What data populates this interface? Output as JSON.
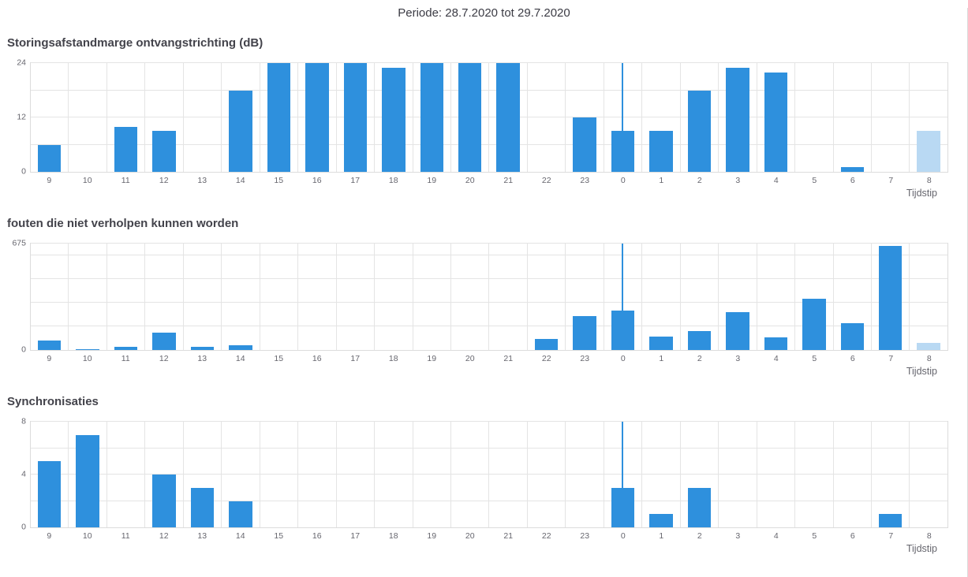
{
  "header": {
    "period_label": "Periode: 28.7.2020 tot 29.7.2020"
  },
  "x_axis_title": "Tijdstip",
  "categories": [
    "9",
    "10",
    "11",
    "12",
    "13",
    "14",
    "15",
    "16",
    "17",
    "18",
    "19",
    "20",
    "21",
    "22",
    "23",
    "0",
    "1",
    "2",
    "3",
    "4",
    "5",
    "6",
    "7",
    "8"
  ],
  "midnight_index": 15,
  "colors": {
    "bar": "#2e90dd",
    "bar_faded": "#b9d9f3",
    "grid": "#e4e4e4",
    "plot_border": "#dcdcdc",
    "title_text": "#43434b",
    "tick_text": "#66666e",
    "header_text": "#3b3b44",
    "midnight_line": "#2e90dd",
    "page_border": "#d9d9d9"
  },
  "chart_data": [
    {
      "type": "bar",
      "title": "Storingsafstandmarge ontvangstrichting (dB)",
      "xlabel": "Tijdstip",
      "ylabel": "",
      "ylim": [
        0,
        24
      ],
      "ymax": 24,
      "categories": [
        "9",
        "10",
        "11",
        "12",
        "13",
        "14",
        "15",
        "16",
        "17",
        "18",
        "19",
        "20",
        "21",
        "22",
        "23",
        "0",
        "1",
        "2",
        "3",
        "4",
        "5",
        "6",
        "7",
        "8"
      ],
      "values": [
        6,
        0,
        10,
        9,
        0,
        18,
        24,
        24,
        24,
        23,
        24,
        24,
        24,
        0,
        12,
        9,
        9,
        18,
        23,
        22,
        0,
        1,
        0,
        9
      ],
      "grid_values": [
        6,
        12,
        18,
        24
      ],
      "yticks": [
        {
          "value": 0,
          "label": "0"
        },
        {
          "value": 12,
          "label": "12"
        },
        {
          "value": 24,
          "label": "24"
        }
      ],
      "faded_indices": [
        23
      ],
      "legend": "off",
      "grid": "on"
    },
    {
      "type": "bar",
      "title": "fouten die niet verholpen kunnen worden",
      "xlabel": "Tijdstip",
      "ylabel": "",
      "ylim": [
        0,
        675
      ],
      "ymax": 675,
      "categories": [
        "9",
        "10",
        "11",
        "12",
        "13",
        "14",
        "15",
        "16",
        "17",
        "18",
        "19",
        "20",
        "21",
        "22",
        "23",
        "0",
        "1",
        "2",
        "3",
        "4",
        "5",
        "6",
        "7",
        "8"
      ],
      "values": [
        60,
        5,
        20,
        110,
        18,
        28,
        0,
        0,
        0,
        0,
        0,
        0,
        0,
        70,
        215,
        250,
        85,
        120,
        240,
        80,
        325,
        170,
        660,
        45
      ],
      "grid_values": [
        150,
        300,
        450,
        600,
        675
      ],
      "yticks": [
        {
          "value": 0,
          "label": "0"
        },
        {
          "value": 675,
          "label": "675"
        }
      ],
      "faded_indices": [
        23
      ],
      "legend": "off",
      "grid": "on"
    },
    {
      "type": "bar",
      "title": "Synchronisaties",
      "xlabel": "Tijdstip",
      "ylabel": "",
      "ylim": [
        0,
        8
      ],
      "ymax": 8,
      "categories": [
        "9",
        "10",
        "11",
        "12",
        "13",
        "14",
        "15",
        "16",
        "17",
        "18",
        "19",
        "20",
        "21",
        "22",
        "23",
        "0",
        "1",
        "2",
        "3",
        "4",
        "5",
        "6",
        "7",
        "8"
      ],
      "values": [
        5,
        7,
        0,
        4,
        3,
        2,
        0,
        0,
        0,
        0,
        0,
        0,
        0,
        0,
        0,
        3,
        1,
        3,
        0,
        0,
        0,
        0,
        1,
        0
      ],
      "grid_values": [
        2,
        4,
        6,
        8
      ],
      "yticks": [
        {
          "value": 0,
          "label": "0"
        },
        {
          "value": 4,
          "label": "4"
        },
        {
          "value": 8,
          "label": "8"
        }
      ],
      "faded_indices": [],
      "legend": "off",
      "grid": "on"
    }
  ]
}
